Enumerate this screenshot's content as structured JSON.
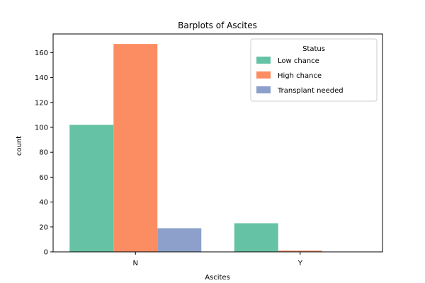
{
  "chart_data": {
    "type": "bar",
    "title": "Barplots of Ascites",
    "xlabel": "Ascites",
    "ylabel": "count",
    "categories": [
      "N",
      "Y"
    ],
    "series": [
      {
        "name": "Low chance",
        "values": [
          102,
          23
        ],
        "color": "#66c2a5"
      },
      {
        "name": "High chance",
        "values": [
          167,
          1
        ],
        "color": "#fc8d62"
      },
      {
        "name": "Transplant needed",
        "values": [
          19,
          0
        ],
        "color": "#8da0cb"
      }
    ],
    "ylim": [
      0,
      175
    ],
    "yticks": [
      0,
      20,
      40,
      60,
      80,
      100,
      120,
      140,
      160
    ],
    "legend": {
      "title": "Status",
      "placement": "top-right"
    },
    "grid": false
  }
}
